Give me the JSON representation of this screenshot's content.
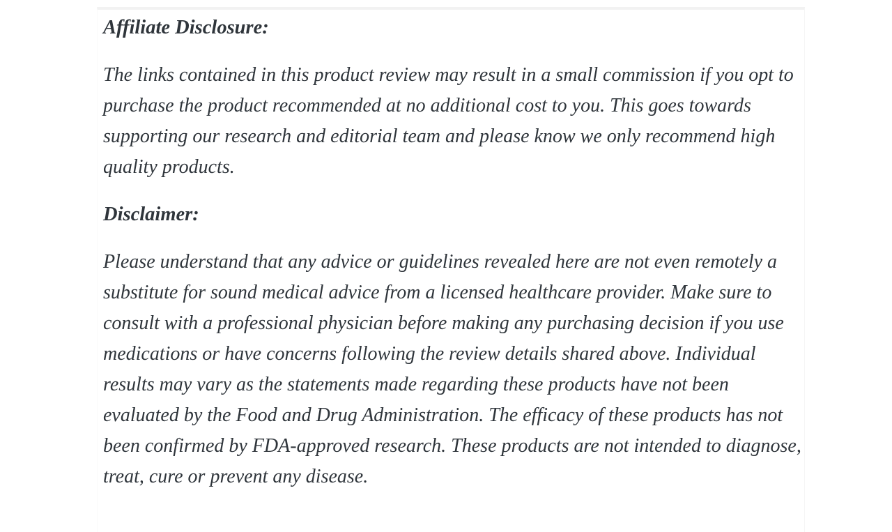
{
  "page": {
    "background": "#ffffff",
    "text_color": "#2f353b",
    "card_edge_color": "#f2f2f2"
  },
  "article": {
    "sections": [
      {
        "heading": "Affiliate Disclosure:",
        "paragraph": "The links contained in this product review may result in a small commission if you opt to purchase the product recommended at no additional cost to you. This goes towards supporting our research and editorial team and please know we only recommend high quality products."
      },
      {
        "heading": "Disclaimer:",
        "paragraph": "Please understand that any advice or guidelines revealed here are not even remotely a substitute for sound medical advice from a licensed healthcare provider. Make sure to consult with a professional physician before making any purchasing decision if you use medications or have concerns following the review details shared above. Individual results may vary as the statements made regarding these products have not been evaluated by the Food and Drug Administration. The efficacy of these products has not been confirmed by FDA-approved research. These products are not intended to diagnose, treat, cure or prevent any disease."
      }
    ]
  }
}
